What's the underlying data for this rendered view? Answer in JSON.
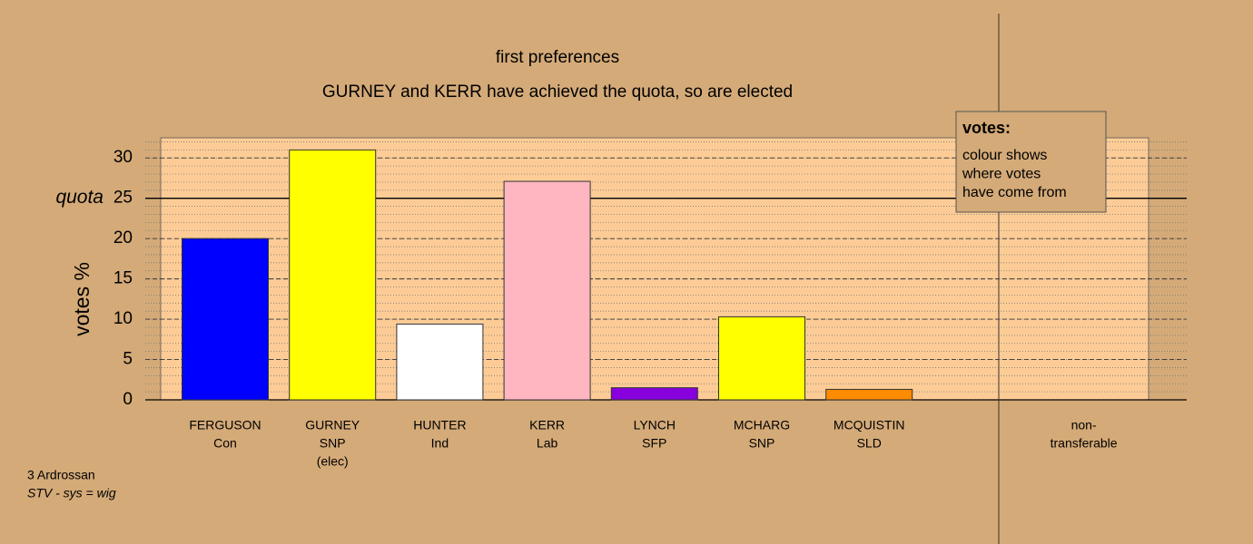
{
  "chart_data": {
    "type": "bar",
    "title": "first preferences",
    "subtitle": "GURNEY and KERR have achieved the quota, so are elected",
    "y_label": "votes %",
    "categories": [
      [
        "FERGUSON",
        "Con"
      ],
      [
        "GURNEY",
        "SNP",
        "(elec)"
      ],
      [
        "HUNTER",
        "Ind"
      ],
      [
        "KERR",
        "Lab"
      ],
      [
        "LYNCH",
        "SFP"
      ],
      [
        "MCHARG",
        "SNP"
      ],
      [
        "MCQUISTIN",
        "SLD"
      ],
      [
        "non-",
        "transferable"
      ]
    ],
    "values": [
      20,
      31,
      9.4,
      27.1,
      1.5,
      10.3,
      1.3,
      null
    ],
    "colors": [
      "#0000ff",
      "#ffff00",
      "#ffffff",
      "#ffb6c1",
      "#8800dd",
      "#ffff00",
      "#ff8c00",
      null
    ],
    "ylim": [
      0,
      32.5
    ],
    "yticks": [
      0,
      5,
      10,
      15,
      20,
      25,
      30
    ],
    "quota": 25,
    "quota_label": "quota",
    "grid": true,
    "legend": {
      "title": "votes:",
      "lines": [
        "colour shows",
        "where votes",
        "have come from"
      ]
    },
    "footer": [
      "3 Ardrossan",
      "STV - sys = wig"
    ]
  }
}
